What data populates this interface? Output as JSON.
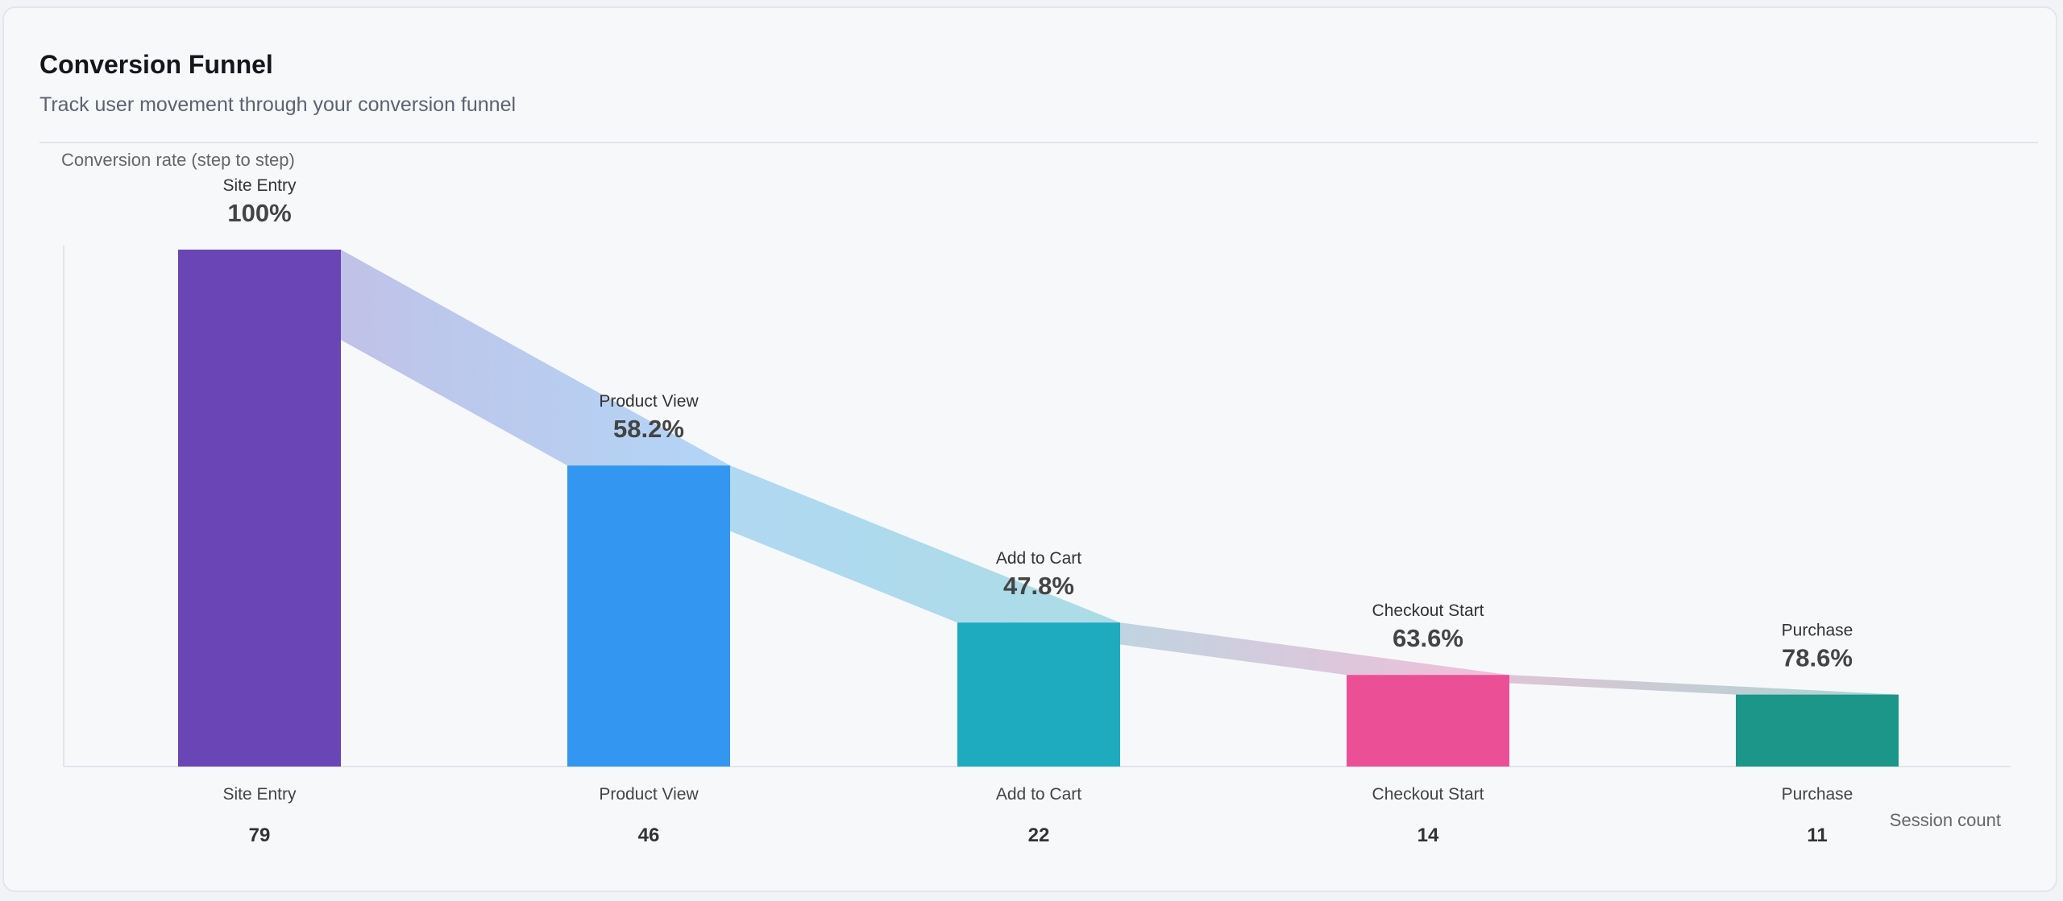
{
  "header": {
    "title": "Conversion Funnel",
    "subtitle": "Track user movement through your conversion funnel"
  },
  "chart_data": {
    "type": "bar",
    "title": "",
    "ylabel": "Conversion rate (step to step)",
    "xlabel": "Session count",
    "categories": [
      "Site Entry",
      "Product View",
      "Add to Cart",
      "Checkout Start",
      "Purchase"
    ],
    "values": [
      79,
      46,
      22,
      14,
      11
    ],
    "conversion_labels": [
      "100%",
      "58.2%",
      "47.8%",
      "63.6%",
      "78.6%"
    ],
    "colors": [
      "#6a45b5",
      "#3396f0",
      "#1eaabf",
      "#eb5096",
      "#1b9688"
    ],
    "ylim": [
      0,
      79
    ],
    "grid": false
  }
}
